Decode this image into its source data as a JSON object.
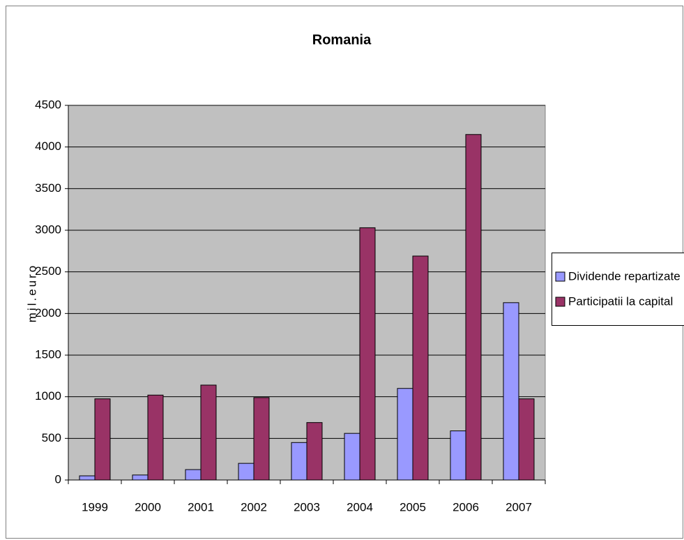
{
  "chart_data": {
    "type": "bar",
    "title": "Romania",
    "y_label": "mil.euro",
    "categories": [
      "1999",
      "2000",
      "2001",
      "2002",
      "2003",
      "2004",
      "2005",
      "2006",
      "2007"
    ],
    "series": [
      {
        "name": "Dividende repartizate",
        "color": "#9999ff",
        "values": [
          50,
          60,
          125,
          200,
          450,
          560,
          1100,
          590,
          2130
        ]
      },
      {
        "name": "Participatii la capital",
        "color": "#993366",
        "values": [
          975,
          1020,
          1140,
          990,
          690,
          3030,
          2690,
          4150,
          975
        ]
      }
    ],
    "ylim": [
      0,
      4500
    ],
    "yticks": [
      0,
      500,
      1000,
      1500,
      2000,
      2500,
      3000,
      3500,
      4000,
      4500
    ],
    "grid": true,
    "legend": "right"
  }
}
